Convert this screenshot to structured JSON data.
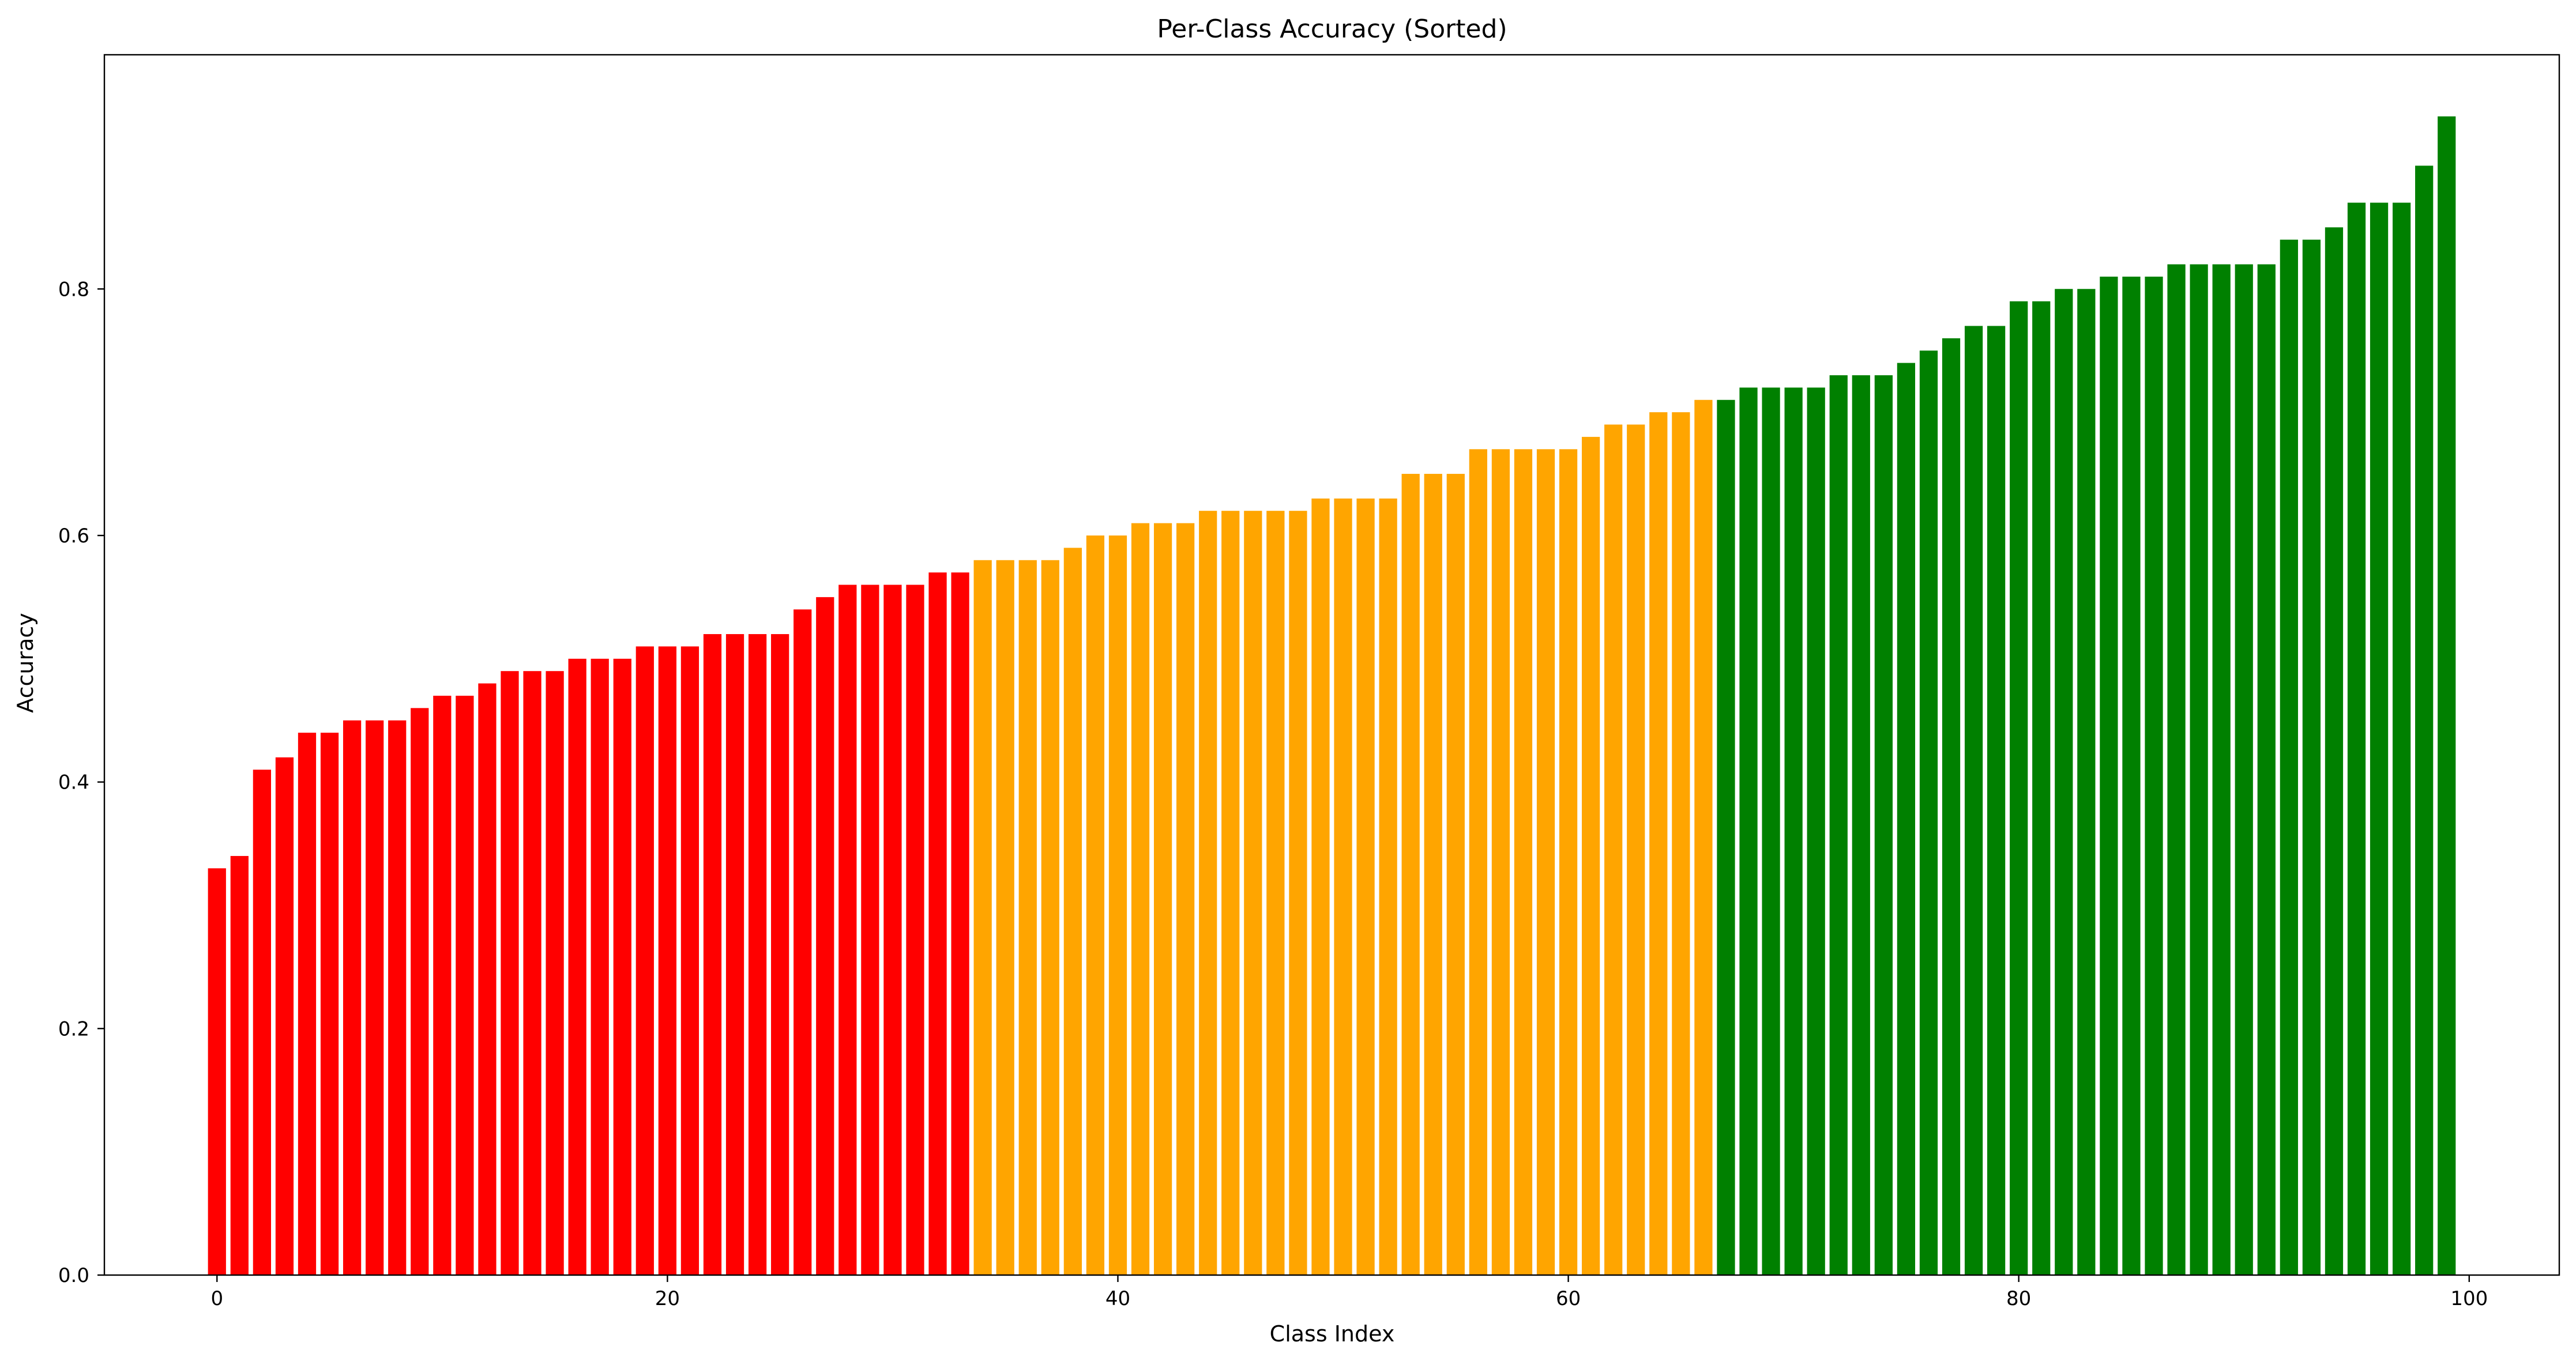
{
  "chart_data": {
    "type": "bar",
    "title": "Per-Class Accuracy (Sorted)",
    "xlabel": "Class Index",
    "ylabel": "Accuracy",
    "xlim": [
      -5,
      104
    ],
    "ylim": [
      0,
      0.99
    ],
    "xticks": [
      0,
      20,
      40,
      60,
      80,
      100
    ],
    "xtick_labels": [
      "0",
      "20",
      "40",
      "60",
      "80",
      "100"
    ],
    "yticks": [
      0.0,
      0.2,
      0.4,
      0.6,
      0.8
    ],
    "ytick_labels": [
      "0.0",
      "0.2",
      "0.4",
      "0.6",
      "0.8"
    ],
    "grid": false,
    "legend": "none",
    "colors": {
      "low": "#ff0000",
      "mid": "#ffa500",
      "high": "#008000",
      "axis": "#000000",
      "background": "#ffffff"
    },
    "groups": [
      {
        "color_key": "low",
        "start": 0,
        "end": 33
      },
      {
        "color_key": "mid",
        "start": 34,
        "end": 66
      },
      {
        "color_key": "high",
        "start": 67,
        "end": 99
      }
    ],
    "x": [
      0,
      1,
      2,
      3,
      4,
      5,
      6,
      7,
      8,
      9,
      10,
      11,
      12,
      13,
      14,
      15,
      16,
      17,
      18,
      19,
      20,
      21,
      22,
      23,
      24,
      25,
      26,
      27,
      28,
      29,
      30,
      31,
      32,
      33,
      34,
      35,
      36,
      37,
      38,
      39,
      40,
      41,
      42,
      43,
      44,
      45,
      46,
      47,
      48,
      49,
      50,
      51,
      52,
      53,
      54,
      55,
      56,
      57,
      58,
      59,
      60,
      61,
      62,
      63,
      64,
      65,
      66,
      67,
      68,
      69,
      70,
      71,
      72,
      73,
      74,
      75,
      76,
      77,
      78,
      79,
      80,
      81,
      82,
      83,
      84,
      85,
      86,
      87,
      88,
      89,
      90,
      91,
      92,
      93,
      94,
      95,
      96,
      97,
      98,
      99
    ],
    "values": [
      0.33,
      0.34,
      0.41,
      0.42,
      0.44,
      0.44,
      0.45,
      0.45,
      0.45,
      0.46,
      0.47,
      0.47,
      0.48,
      0.49,
      0.49,
      0.49,
      0.5,
      0.5,
      0.5,
      0.51,
      0.51,
      0.51,
      0.52,
      0.52,
      0.52,
      0.52,
      0.54,
      0.55,
      0.56,
      0.56,
      0.56,
      0.56,
      0.57,
      0.57,
      0.58,
      0.58,
      0.58,
      0.58,
      0.59,
      0.6,
      0.6,
      0.61,
      0.61,
      0.61,
      0.62,
      0.62,
      0.62,
      0.62,
      0.62,
      0.63,
      0.63,
      0.63,
      0.63,
      0.65,
      0.65,
      0.65,
      0.67,
      0.67,
      0.67,
      0.67,
      0.67,
      0.68,
      0.69,
      0.69,
      0.7,
      0.7,
      0.71,
      0.71,
      0.72,
      0.72,
      0.72,
      0.72,
      0.73,
      0.73,
      0.73,
      0.74,
      0.75,
      0.76,
      0.77,
      0.77,
      0.79,
      0.79,
      0.8,
      0.8,
      0.81,
      0.81,
      0.81,
      0.82,
      0.82,
      0.82,
      0.82,
      0.82,
      0.84,
      0.84,
      0.85,
      0.87,
      0.87,
      0.87,
      0.9,
      0.94
    ]
  }
}
